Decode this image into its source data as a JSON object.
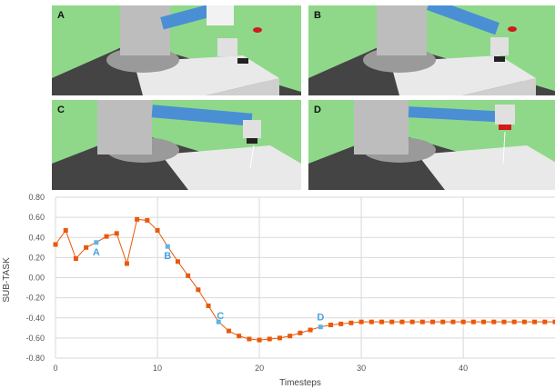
{
  "panels": [
    {
      "letter": "A",
      "label": "A"
    },
    {
      "letter": "B",
      "label": "B"
    },
    {
      "letter": "C",
      "label": "C"
    },
    {
      "letter": "D",
      "label": "D"
    }
  ],
  "colors": {
    "series": "#e8590c",
    "highlight": "#5bb4e8",
    "grid": "#d9d9d9",
    "ground": "#8fd88a"
  },
  "chart_data": {
    "type": "line",
    "title": "",
    "xlabel": "Timesteps",
    "ylabel": "SUB-TASK",
    "xlim": [
      0,
      49
    ],
    "ylim": [
      -0.8,
      0.8
    ],
    "x_ticks": [
      "0",
      "10",
      "20",
      "30",
      "40"
    ],
    "y_ticks": [
      "0.80",
      "0.60",
      "0.40",
      "0.20",
      "0.00",
      "-0.20",
      "-0.40",
      "-0.60",
      "-0.80"
    ],
    "grid": true,
    "x": [
      0,
      1,
      2,
      3,
      4,
      5,
      6,
      7,
      8,
      9,
      10,
      11,
      12,
      13,
      14,
      15,
      16,
      17,
      18,
      19,
      20,
      21,
      22,
      23,
      24,
      25,
      26,
      27,
      28,
      29,
      30,
      31,
      32,
      33,
      34,
      35,
      36,
      37,
      38,
      39,
      40,
      41,
      42,
      43,
      44,
      45,
      46,
      47,
      48,
      49
    ],
    "series": [
      {
        "values": [
          0.33,
          0.47,
          0.19,
          0.3,
          0.35,
          0.41,
          0.44,
          0.14,
          0.58,
          0.57,
          0.47,
          0.31,
          0.16,
          0.02,
          -0.12,
          -0.28,
          -0.44,
          -0.53,
          -0.58,
          -0.61,
          -0.62,
          -0.61,
          -0.6,
          -0.58,
          -0.55,
          -0.52,
          -0.49,
          -0.47,
          -0.46,
          -0.45,
          -0.44,
          -0.44,
          -0.44,
          -0.44,
          -0.44,
          -0.44,
          -0.44,
          -0.44,
          -0.44,
          -0.44,
          -0.44,
          -0.44,
          -0.44,
          -0.44,
          -0.44,
          -0.44,
          -0.44,
          -0.44,
          -0.44,
          -0.44
        ]
      }
    ],
    "annotations": [
      {
        "label": "A",
        "x": 4,
        "y": 0.35
      },
      {
        "label": "B",
        "x": 11,
        "y": 0.31
      },
      {
        "label": "C",
        "x": 16,
        "y": -0.44
      },
      {
        "label": "D",
        "x": 26,
        "y": -0.49
      }
    ]
  }
}
